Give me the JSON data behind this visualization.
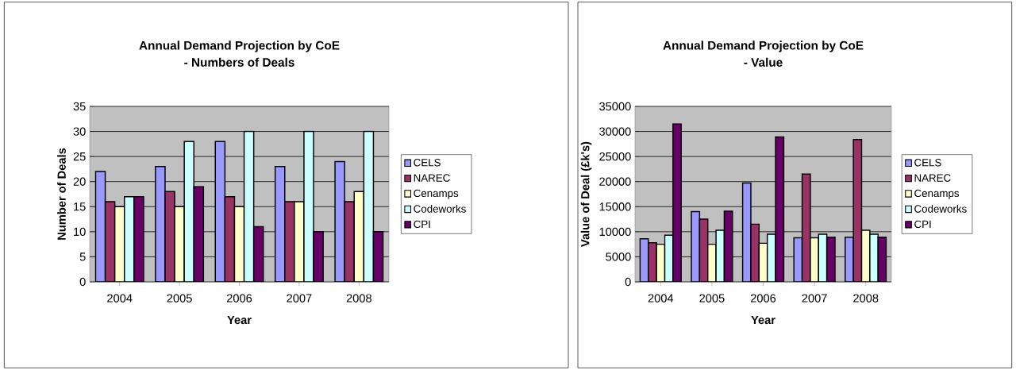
{
  "chart_data": [
    {
      "type": "bar",
      "title": "Annual Demand Projection by CoE",
      "subtitle": "- Numbers of Deals",
      "xlabel": "Year",
      "ylabel": "Number of Deals",
      "categories": [
        "2004",
        "2005",
        "2006",
        "2007",
        "2008"
      ],
      "series": [
        {
          "name": "CELS",
          "color": "#9999ff",
          "values": [
            22,
            23,
            28,
            23,
            24
          ]
        },
        {
          "name": "NAREC",
          "color": "#993366",
          "values": [
            16,
            18,
            17,
            16,
            16
          ]
        },
        {
          "name": "Cenamps",
          "color": "#ffffcc",
          "values": [
            15,
            15,
            15,
            16,
            18
          ]
        },
        {
          "name": "Codeworks",
          "color": "#ccffff",
          "values": [
            17,
            28,
            30,
            30,
            30
          ]
        },
        {
          "name": "CPI",
          "color": "#660066",
          "values": [
            17,
            19,
            11,
            10,
            10
          ]
        }
      ],
      "ylim": [
        0,
        35
      ],
      "yticks": [
        0,
        5,
        10,
        15,
        20,
        25,
        30,
        35
      ],
      "grid": "y",
      "legend": "right"
    },
    {
      "type": "bar",
      "title": "Annual Demand Projection by CoE",
      "subtitle": "- Value",
      "xlabel": "Year",
      "ylabel": "Value of Deal (£k's)",
      "categories": [
        "2004",
        "2005",
        "2006",
        "2007",
        "2008"
      ],
      "series": [
        {
          "name": "CELS",
          "color": "#9999ff",
          "values": [
            8600,
            14000,
            19700,
            8800,
            8900
          ]
        },
        {
          "name": "NAREC",
          "color": "#993366",
          "values": [
            7800,
            12500,
            11500,
            21500,
            28400
          ]
        },
        {
          "name": "Cenamps",
          "color": "#ffffcc",
          "values": [
            7500,
            7500,
            7700,
            8800,
            10300
          ]
        },
        {
          "name": "Codeworks",
          "color": "#ccffff",
          "values": [
            9300,
            10300,
            9500,
            9500,
            9500
          ]
        },
        {
          "name": "CPI",
          "color": "#660066",
          "values": [
            31500,
            14100,
            28900,
            8900,
            8900
          ]
        }
      ],
      "ylim": [
        0,
        35000
      ],
      "yticks": [
        0,
        5000,
        10000,
        15000,
        20000,
        25000,
        30000,
        35000
      ],
      "grid": "y",
      "legend": "right"
    }
  ]
}
